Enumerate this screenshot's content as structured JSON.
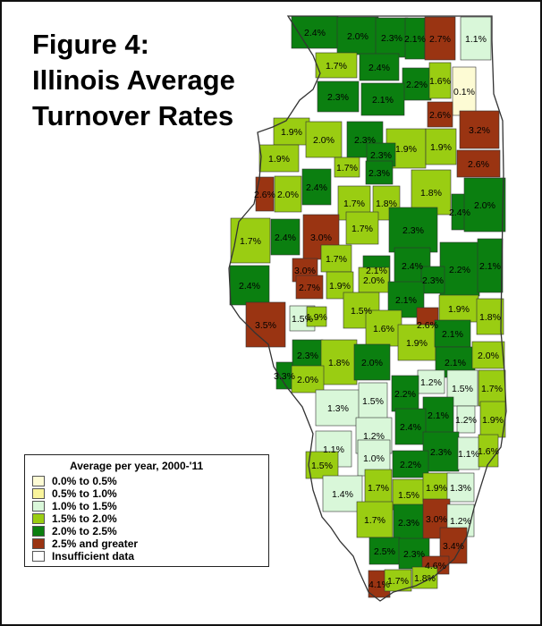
{
  "title": {
    "line1": "Figure 4:",
    "line2": "Illinois Average",
    "line3": "Turnover Rates"
  },
  "colors": {
    "c0": "#fdfbd4",
    "c1": "#f9f49b",
    "c2": "#d9f7d9",
    "c3": "#9acd12",
    "c4": "#0b7f10",
    "c5": "#9a3412",
    "c6": "#ffffff",
    "border": "#333333"
  },
  "legend": {
    "title": "Average per year, 2000-'11",
    "items": [
      {
        "label": "0.0% to 0.5%",
        "color": "#fdfbd4"
      },
      {
        "label": "0.5% to 1.0%",
        "color": "#f9f49b"
      },
      {
        "label": "1.0% to 1.5%",
        "color": "#d9f7d9"
      },
      {
        "label": "1.5% to 2.0%",
        "color": "#9acd12"
      },
      {
        "label": "2.0% to 2.5%",
        "color": "#0b7f10"
      },
      {
        "label": "2.5% and greater",
        "color": "#9a3412"
      },
      {
        "label": "Insufficient data",
        "color": "#ffffff"
      }
    ]
  },
  "county_labels": [
    "2.4%",
    "2.0%",
    "2.3%",
    "2.1%",
    "2.7%",
    "1.1%",
    "1.7%",
    "2.4%",
    "2.2%",
    "1.6%",
    "0.1%",
    "2.3%",
    "2.1%",
    "2.6%",
    "3.2%",
    "1.9%",
    "2.0%",
    "2.3%",
    "1.9%",
    "1.9%",
    "1.9%",
    "1.7%",
    "2.3%",
    "2.6%",
    "2.3%",
    "2.6%",
    "2.0%",
    "2.4%",
    "1.7%",
    "1.8%",
    "1.8%",
    "2.4%",
    "2.0%",
    "1.7%",
    "2.4%",
    "3.0%",
    "1.7%",
    "2.3%",
    "1.7%",
    "3.0%",
    "2.1%",
    "2.4%",
    "2.2%",
    "2.1%",
    "2.4%",
    "2.7%",
    "1.9%",
    "2.0%",
    "2.3%",
    "1.5%",
    "1.9%",
    "1.5%",
    "2.1%",
    "1.9%",
    "1.8%",
    "3.5%",
    "1.6%",
    "2.6%",
    "1.9%",
    "2.1%",
    "2.3%",
    "1.8%",
    "2.0%",
    "2.1%",
    "2.0%",
    "3.3%",
    "2.0%",
    "1.2%",
    "1.5%",
    "1.7%",
    "1.3%",
    "1.5%",
    "2.2%",
    "2.1%",
    "1.2%",
    "1.9%",
    "1.2%",
    "2.4%",
    "1.1%",
    "1.0%",
    "2.3%",
    "1.1%",
    "1.6%",
    "1.5%",
    "2.2%",
    "1.4%",
    "1.7%",
    "1.5%",
    "1.9%",
    "1.3%",
    "1.7%",
    "2.3%",
    "3.0%",
    "1.2%",
    "2.5%",
    "2.3%",
    "3.4%",
    "4.6%",
    "4.1%",
    "1.7%",
    "1.8%"
  ]
}
